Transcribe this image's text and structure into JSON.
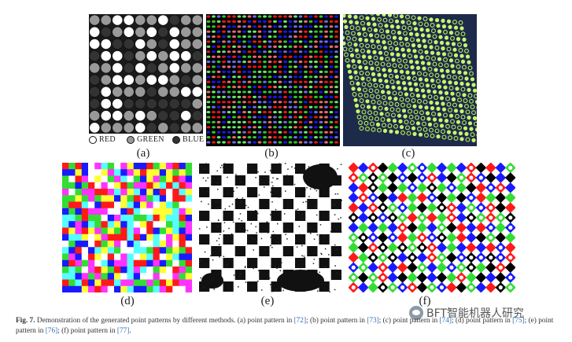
{
  "figure": {
    "panels": [
      {
        "id": "a",
        "label": "(a)"
      },
      {
        "id": "b",
        "label": "(b)"
      },
      {
        "id": "c",
        "label": "(c)"
      },
      {
        "id": "d",
        "label": "(d)"
      },
      {
        "id": "e",
        "label": "(e)"
      },
      {
        "id": "f",
        "label": "(f)"
      }
    ],
    "legend_a": [
      {
        "text": "RED",
        "color": "#ffffff"
      },
      {
        "text": "GREEN",
        "color": "#999999"
      },
      {
        "text": "BLUE",
        "color": "#333333"
      }
    ],
    "caption": {
      "fig_number": "Fig. 7.",
      "line1_text": "Demonstration of the generated point patterns by different methods. (a) point pattern in",
      "ref_72": "[72]",
      "line1_b": "; (b) point pattern in",
      "ref_73": "[73]",
      "line1_c": "; (c) point pattern in",
      "ref_74": "[74]",
      "line1_d": "; (d) point pattern in",
      "ref_75": "[75]",
      "line2_e": "; (e) point pattern in",
      "ref_76": "[76]",
      "line2_f": "; (f) point pattern in",
      "ref_77": "[77]",
      "end": "."
    },
    "watermark": "BFT智能机器人研究"
  },
  "colors": {
    "red": "#ff1a1a",
    "green": "#33dd33",
    "blue": "#1a1aff",
    "yellow": "#ffff33",
    "magenta": "#ff33ff",
    "cyan": "#55ffff",
    "white": "#ffffff",
    "black": "#000000",
    "link": "#2f6fb5"
  }
}
